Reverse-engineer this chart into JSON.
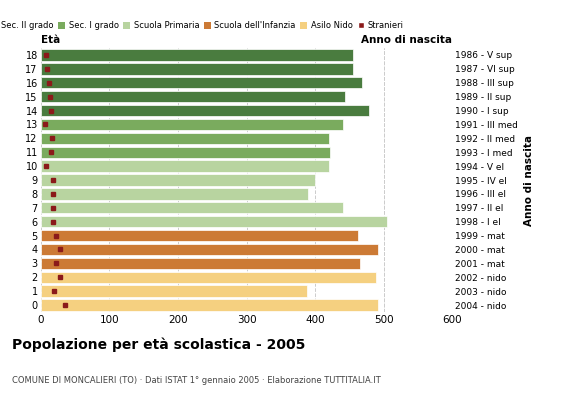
{
  "ages": [
    18,
    17,
    16,
    15,
    14,
    13,
    12,
    11,
    10,
    9,
    8,
    7,
    6,
    5,
    4,
    3,
    2,
    1,
    0
  ],
  "years": [
    "1986 - V sup",
    "1987 - VI sup",
    "1988 - III sup",
    "1989 - II sup",
    "1990 - I sup",
    "1991 - III med",
    "1992 - II med",
    "1993 - I med",
    "1994 - V el",
    "1995 - IV el",
    "1996 - III el",
    "1997 - II el",
    "1998 - I el",
    "1999 - mat",
    "2000 - mat",
    "2001 - mat",
    "2002 - nido",
    "2003 - nido",
    "2004 - nido"
  ],
  "bar_values": [
    455,
    455,
    468,
    443,
    478,
    440,
    420,
    422,
    420,
    400,
    390,
    440,
    505,
    462,
    492,
    465,
    488,
    388,
    492
  ],
  "stranieri_values": [
    8,
    10,
    12,
    14,
    15,
    7,
    17,
    15,
    8,
    18,
    18,
    18,
    18,
    22,
    28,
    22,
    28,
    20,
    35
  ],
  "categories": [
    "Sec. II grado",
    "Sec. I grado",
    "Scuola Primaria",
    "Scuola dell'Infanzia",
    "Asilo Nido"
  ],
  "bar_colors": {
    "Sec. II grado": "#4a7c3f",
    "Sec. I grado": "#7aab5e",
    "Scuola Primaria": "#b8d4a0",
    "Scuola dell'Infanzia": "#cc7a35",
    "Asilo Nido": "#f5d080"
  },
  "stranieri_color": "#8b1a1a",
  "title": "Popolazione per età scolastica - 2005",
  "subtitle": "COMUNE DI MONCALIERI (TO) · Dati ISTAT 1° gennaio 2005 · Elaborazione TUTTITALIA.IT",
  "xlabel_eta": "Età",
  "xlabel_anno": "Anno di nascita",
  "xlim": [
    0,
    600
  ],
  "xticks": [
    0,
    100,
    200,
    300,
    400,
    500,
    600
  ],
  "grid_color": "#cccccc",
  "bg_color": "#ffffff",
  "bar_height": 0.82
}
